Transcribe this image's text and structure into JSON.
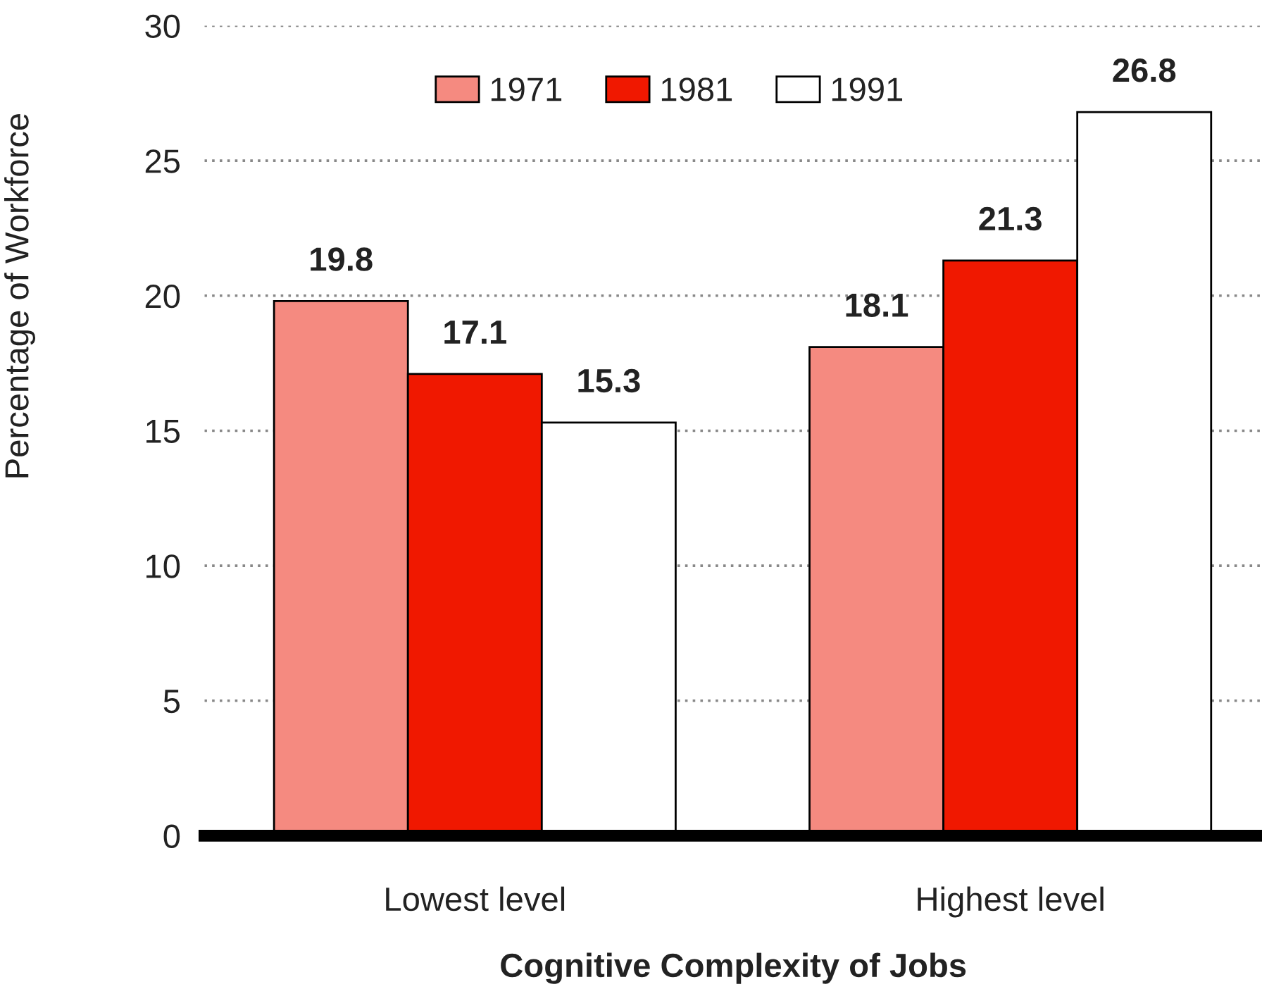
{
  "chart_data": {
    "type": "bar",
    "xlabel": "Cognitive Complexity of Jobs",
    "ylabel": "Percentage of Workforce",
    "categories": [
      "Lowest level",
      "Highest level"
    ],
    "series": [
      {
        "name": "1971",
        "color": "#f58a80",
        "values": [
          19.8,
          18.1
        ]
      },
      {
        "name": "1981",
        "color": "#f01800",
        "values": [
          17.1,
          21.3
        ]
      },
      {
        "name": "1991",
        "color": "#ffffff",
        "values": [
          15.3,
          26.8
        ]
      }
    ],
    "ylim": [
      0,
      30
    ],
    "yticks": [
      0,
      5,
      10,
      15,
      20,
      25,
      30
    ],
    "grid": "y",
    "legend": "top",
    "data_labels": true
  }
}
